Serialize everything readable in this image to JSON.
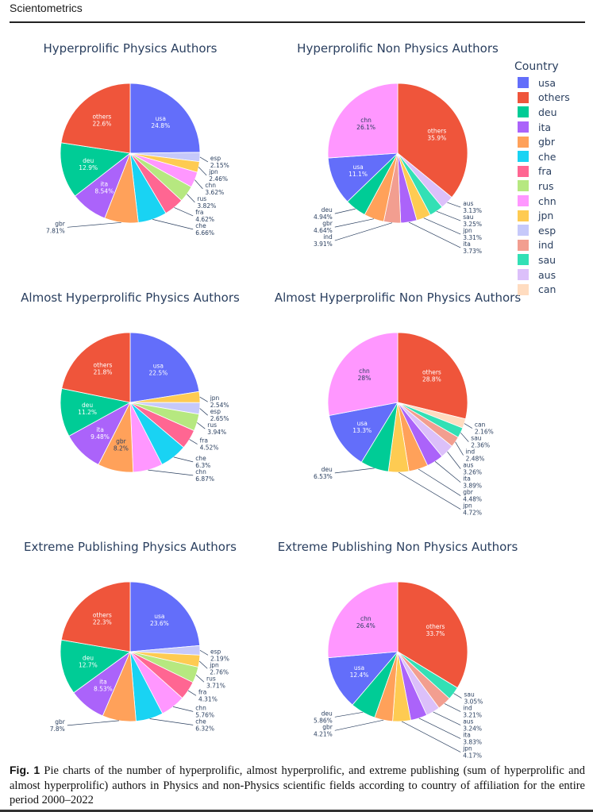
{
  "page": {
    "journal": "Scientometrics",
    "caption_label": "Fig. 1",
    "caption_text": "Pie charts of the number of hyperprolific, almost hyperprolific, and extreme publishing (sum of hyperprolific and almost hyperprolific) authors in Physics and non-Physics scientific fields according to country of affiliation for the entire period 2000–2022"
  },
  "legend": {
    "title": "Country",
    "items": [
      {
        "label": "usa",
        "color": "#636efa"
      },
      {
        "label": "others",
        "color": "#ef553b"
      },
      {
        "label": "deu",
        "color": "#00cc96"
      },
      {
        "label": "ita",
        "color": "#ab63fa"
      },
      {
        "label": "gbr",
        "color": "#ffa15a"
      },
      {
        "label": "che",
        "color": "#19d3f3"
      },
      {
        "label": "fra",
        "color": "#ff6692"
      },
      {
        "label": "rus",
        "color": "#b6e880"
      },
      {
        "label": "chn",
        "color": "#ff97ff"
      },
      {
        "label": "jpn",
        "color": "#fecb52"
      },
      {
        "label": "esp",
        "color": "#c6c9fa"
      },
      {
        "label": "ind",
        "color": "#f29e90"
      },
      {
        "label": "sau",
        "color": "#33e0b5"
      },
      {
        "label": "aus",
        "color": "#dcc0fa"
      },
      {
        "label": "can",
        "color": "#ffdcc0"
      }
    ]
  },
  "chart_data": [
    {
      "type": "pie",
      "title": "Hyperprolific Physics Authors",
      "slices": [
        {
          "label": "usa",
          "value": 24.8,
          "text": "24.8%"
        },
        {
          "label": "esp",
          "value": 2.15,
          "text": "2.15%"
        },
        {
          "label": "jpn",
          "value": 2.46,
          "text": "2.46%"
        },
        {
          "label": "chn",
          "value": 3.62,
          "text": "3.62%"
        },
        {
          "label": "rus",
          "value": 3.82,
          "text": "3.82%"
        },
        {
          "label": "fra",
          "value": 4.62,
          "text": "4.62%"
        },
        {
          "label": "che",
          "value": 6.66,
          "text": "6.66%"
        },
        {
          "label": "gbr",
          "value": 7.81,
          "text": "7.81%"
        },
        {
          "label": "ita",
          "value": 8.54,
          "text": "8.54%"
        },
        {
          "label": "deu",
          "value": 12.9,
          "text": "12.9%"
        },
        {
          "label": "others",
          "value": 22.6,
          "text": "22.6%"
        }
      ]
    },
    {
      "type": "pie",
      "title": "Hyperprolific Non Physics Authors",
      "slices": [
        {
          "label": "others",
          "value": 35.9,
          "text": "35.9%"
        },
        {
          "label": "aus",
          "value": 3.13,
          "text": "3.13%"
        },
        {
          "label": "sau",
          "value": 3.25,
          "text": "3.25%"
        },
        {
          "label": "jpn",
          "value": 3.31,
          "text": "3.31%"
        },
        {
          "label": "ita",
          "value": 3.73,
          "text": "3.73%"
        },
        {
          "label": "ind",
          "value": 3.91,
          "text": "3.91%"
        },
        {
          "label": "gbr",
          "value": 4.64,
          "text": "4.64%"
        },
        {
          "label": "deu",
          "value": 4.94,
          "text": "4.94%"
        },
        {
          "label": "usa",
          "value": 11.1,
          "text": "11.1%"
        },
        {
          "label": "chn",
          "value": 26.1,
          "text": "26.1%"
        }
      ]
    },
    {
      "type": "pie",
      "title": "Almost Hyperprolific Physics Authors",
      "slices": [
        {
          "label": "usa",
          "value": 22.5,
          "text": "22.5%"
        },
        {
          "label": "jpn",
          "value": 2.54,
          "text": "2.54%"
        },
        {
          "label": "esp",
          "value": 2.65,
          "text": "2.65%"
        },
        {
          "label": "rus",
          "value": 3.94,
          "text": "3.94%"
        },
        {
          "label": "fra",
          "value": 4.52,
          "text": "4.52%"
        },
        {
          "label": "che",
          "value": 6.3,
          "text": "6.3%"
        },
        {
          "label": "chn",
          "value": 6.87,
          "text": "6.87%"
        },
        {
          "label": "gbr",
          "value": 8.2,
          "text": "8.2%"
        },
        {
          "label": "ita",
          "value": 9.48,
          "text": "9.48%"
        },
        {
          "label": "deu",
          "value": 11.2,
          "text": "11.2%"
        },
        {
          "label": "others",
          "value": 21.8,
          "text": "21.8%"
        }
      ]
    },
    {
      "type": "pie",
      "title": "Almost Hyperprolific Non Physics Authors",
      "slices": [
        {
          "label": "others",
          "value": 28.8,
          "text": "28.8%"
        },
        {
          "label": "can",
          "value": 2.16,
          "text": "2.16%"
        },
        {
          "label": "sau",
          "value": 2.36,
          "text": "2.36%"
        },
        {
          "label": "ind",
          "value": 2.48,
          "text": "2.48%"
        },
        {
          "label": "aus",
          "value": 3.26,
          "text": "3.26%"
        },
        {
          "label": "ita",
          "value": 3.89,
          "text": "3.89%"
        },
        {
          "label": "gbr",
          "value": 4.48,
          "text": "4.48%"
        },
        {
          "label": "jpn",
          "value": 4.72,
          "text": "4.72%"
        },
        {
          "label": "deu",
          "value": 6.53,
          "text": "6.53%"
        },
        {
          "label": "usa",
          "value": 13.3,
          "text": "13.3%"
        },
        {
          "label": "chn",
          "value": 28,
          "text": "28%"
        }
      ]
    },
    {
      "type": "pie",
      "title": "Extreme Publishing Physics Authors",
      "slices": [
        {
          "label": "usa",
          "value": 23.6,
          "text": "23.6%"
        },
        {
          "label": "esp",
          "value": 2.19,
          "text": "2.19%"
        },
        {
          "label": "jpn",
          "value": 2.76,
          "text": "2.76%"
        },
        {
          "label": "rus",
          "value": 3.71,
          "text": "3.71%"
        },
        {
          "label": "fra",
          "value": 4.31,
          "text": "4.31%"
        },
        {
          "label": "chn",
          "value": 5.76,
          "text": "5.76%"
        },
        {
          "label": "che",
          "value": 6.32,
          "text": "6.32%"
        },
        {
          "label": "gbr",
          "value": 7.8,
          "text": "7.8%"
        },
        {
          "label": "ita",
          "value": 8.53,
          "text": "8.53%"
        },
        {
          "label": "deu",
          "value": 12.7,
          "text": "12.7%"
        },
        {
          "label": "others",
          "value": 22.3,
          "text": "22.3%"
        }
      ]
    },
    {
      "type": "pie",
      "title": "Extreme Publishing Non Physics Authors",
      "slices": [
        {
          "label": "others",
          "value": 33.7,
          "text": "33.7%"
        },
        {
          "label": "sau",
          "value": 3.05,
          "text": "3.05%"
        },
        {
          "label": "ind",
          "value": 3.21,
          "text": "3.21%"
        },
        {
          "label": "aus",
          "value": 3.24,
          "text": "3.24%"
        },
        {
          "label": "ita",
          "value": 3.83,
          "text": "3.83%"
        },
        {
          "label": "jpn",
          "value": 4.17,
          "text": "4.17%"
        },
        {
          "label": "gbr",
          "value": 4.21,
          "text": "4.21%"
        },
        {
          "label": "deu",
          "value": 5.86,
          "text": "5.86%"
        },
        {
          "label": "usa",
          "value": 12.4,
          "text": "12.4%"
        },
        {
          "label": "chn",
          "value": 26.4,
          "text": "26.4%"
        }
      ]
    }
  ]
}
